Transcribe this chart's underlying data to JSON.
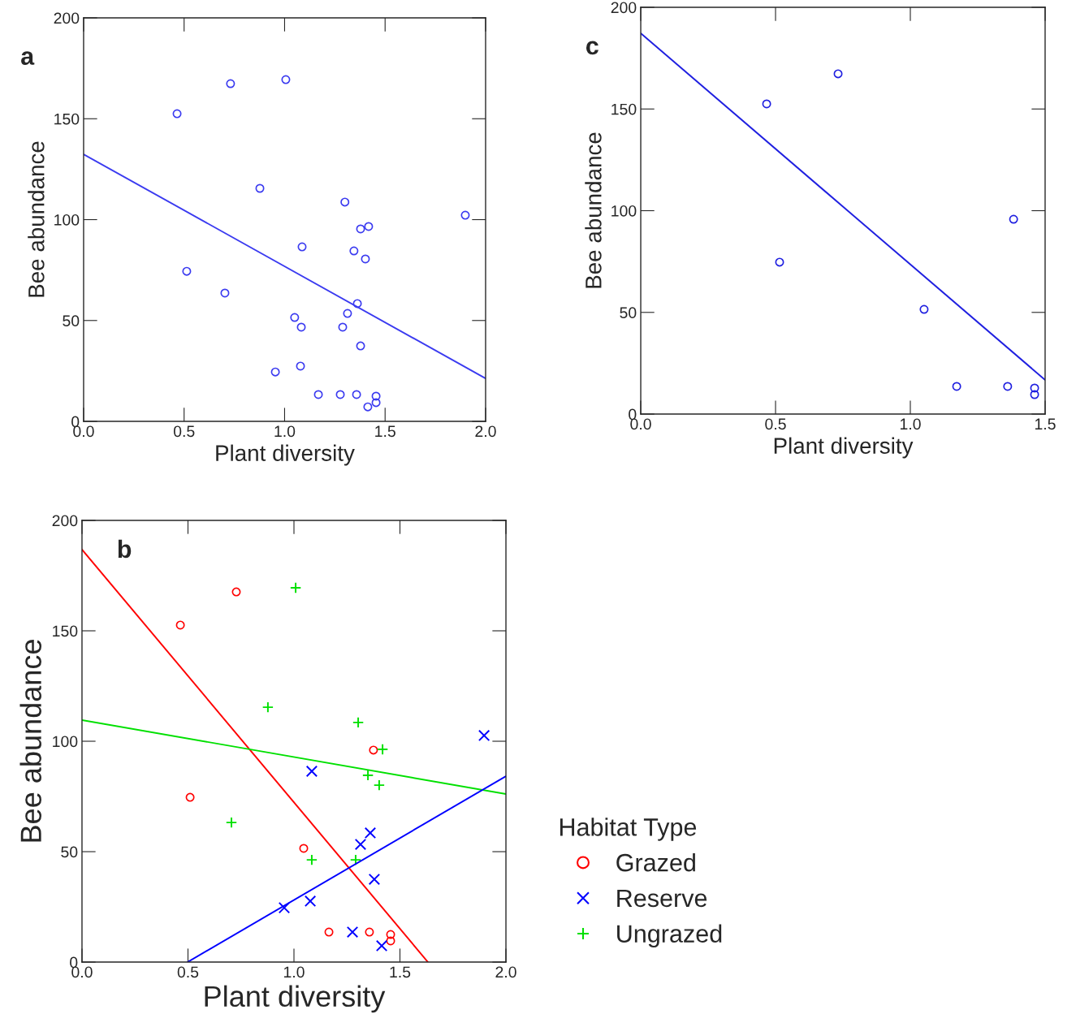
{
  "chart_data": [
    {
      "type": "scatter",
      "title": "a",
      "xlabel": "Plant diversity",
      "ylabel": "Bee abundance",
      "xlim": [
        0,
        2
      ],
      "ylim": [
        0,
        200
      ],
      "xticks": [
        {
          "value": 0,
          "label": "0.0"
        },
        {
          "value": 0.5,
          "label": "0.5"
        },
        {
          "value": 1,
          "label": "1.0"
        },
        {
          "value": 1.5,
          "label": "1.5"
        },
        {
          "value": 2,
          "label": "2.0"
        }
      ],
      "yticks": [
        0,
        50,
        100,
        150,
        200
      ],
      "grid": false,
      "legend": false,
      "series": [
        {
          "type": "scatter",
          "marker": "circle",
          "color": "#3b3bf0",
          "x": [
            0.465,
            0.731,
            1.006,
            0.877,
            1.3,
            1.418,
            1.378,
            1.899,
            1.087,
            1.345,
            1.402,
            0.513,
            0.703,
            1.362,
            1.313,
            1.05,
            1.083,
            1.289,
            1.378,
            1.079,
            0.954,
            1.168,
            1.277,
            1.358,
            1.455,
            1.455,
            1.414
          ],
          "values": [
            152.5,
            167.4,
            169.4,
            115.5,
            108.7,
            96.6,
            95.4,
            102.2,
            86.5,
            84.5,
            80.5,
            74.4,
            63.6,
            58.4,
            53.5,
            51.5,
            46.7,
            46.7,
            37.4,
            27.4,
            24.5,
            13.3,
            13.3,
            13.3,
            12.5,
            9.3,
            7.2
          ]
        },
        {
          "type": "line",
          "marker": "none",
          "color": "#3b3bf0",
          "x": [
            0,
            2
          ],
          "values": [
            132.4,
            21.3
          ]
        }
      ]
    },
    {
      "type": "scatter",
      "title": "c",
      "xlabel": "Plant diversity",
      "ylabel": "Bee abundance",
      "xlim": [
        0,
        1.5
      ],
      "ylim": [
        0,
        200
      ],
      "xticks": [
        {
          "value": 0,
          "label": "0.0"
        },
        {
          "value": 0.5,
          "label": "0.5"
        },
        {
          "value": 1,
          "label": "1.0"
        },
        {
          "value": 1.5,
          "label": "1.5"
        }
      ],
      "yticks": [
        0,
        50,
        100,
        150,
        200
      ],
      "grid": false,
      "legend": false,
      "series": [
        {
          "type": "scatter",
          "marker": "circle",
          "color": "#2020e0",
          "x": [
            0.467,
            0.732,
            0.515,
            1.051,
            1.383,
            1.172,
            1.361,
            1.461,
            1.461
          ],
          "values": [
            152.5,
            167.3,
            74.7,
            51.5,
            95.8,
            13.6,
            13.6,
            12.8,
            9.6
          ]
        },
        {
          "type": "line",
          "marker": "none",
          "color": "#2020e0",
          "x": [
            0,
            1.5
          ],
          "values": [
            187.2,
            16.8
          ]
        }
      ]
    },
    {
      "type": "scatter",
      "title": "b",
      "xlabel": "Plant diversity",
      "ylabel": "Bee abundance",
      "legend_title": "Habitat Type",
      "xlim": [
        0,
        2
      ],
      "ylim": [
        0,
        200
      ],
      "xticks": [
        {
          "value": 0,
          "label": "0.0"
        },
        {
          "value": 0.5,
          "label": "0.5"
        },
        {
          "value": 1,
          "label": "1.0"
        },
        {
          "value": 1.5,
          "label": "1.5"
        },
        {
          "value": 2,
          "label": "2.0"
        }
      ],
      "yticks": [
        0,
        50,
        100,
        150,
        200
      ],
      "grid": false,
      "legend": "right",
      "series": [
        {
          "type": "scatter",
          "name": "Grazed",
          "marker": "circle",
          "color": "#ff0000",
          "x": [
            0.464,
            0.728,
            0.51,
            1.046,
            1.375,
            1.165,
            1.356,
            1.456,
            1.456
          ],
          "values": [
            152.6,
            167.6,
            74.6,
            51.5,
            96.0,
            13.6,
            13.6,
            12.5,
            9.6
          ]
        },
        {
          "type": "scatter",
          "name": "Reserve",
          "marker": "cross",
          "color": "#0000ff",
          "x": [
            1.897,
            1.084,
            1.36,
            1.314,
            1.379,
            1.077,
            0.954,
            1.276,
            1.414
          ],
          "values": [
            102.6,
            86.4,
            58.5,
            53.3,
            37.5,
            27.6,
            24.6,
            13.6,
            7.4
          ]
        },
        {
          "type": "scatter",
          "name": "Ungrazed",
          "marker": "plus",
          "color": "#00e000",
          "x": [
            1.008,
            0.877,
            1.303,
            1.418,
            1.349,
            1.402,
            0.705,
            1.084,
            1.291
          ],
          "values": [
            169.5,
            115.4,
            108.5,
            96.3,
            84.6,
            80.1,
            63.2,
            46.3,
            46.3
          ]
        },
        {
          "type": "line",
          "marker": "none",
          "color": "#ff0000",
          "x": [
            0,
            1.632
          ],
          "values": [
            186.8,
            0
          ]
        },
        {
          "type": "line",
          "marker": "none",
          "color": "#00e000",
          "x": [
            0,
            2
          ],
          "values": [
            109.6,
            76.1
          ]
        },
        {
          "type": "line",
          "marker": "none",
          "color": "#0000ff",
          "x": [
            0.498,
            2
          ],
          "values": [
            0,
            84.2
          ]
        }
      ]
    }
  ]
}
